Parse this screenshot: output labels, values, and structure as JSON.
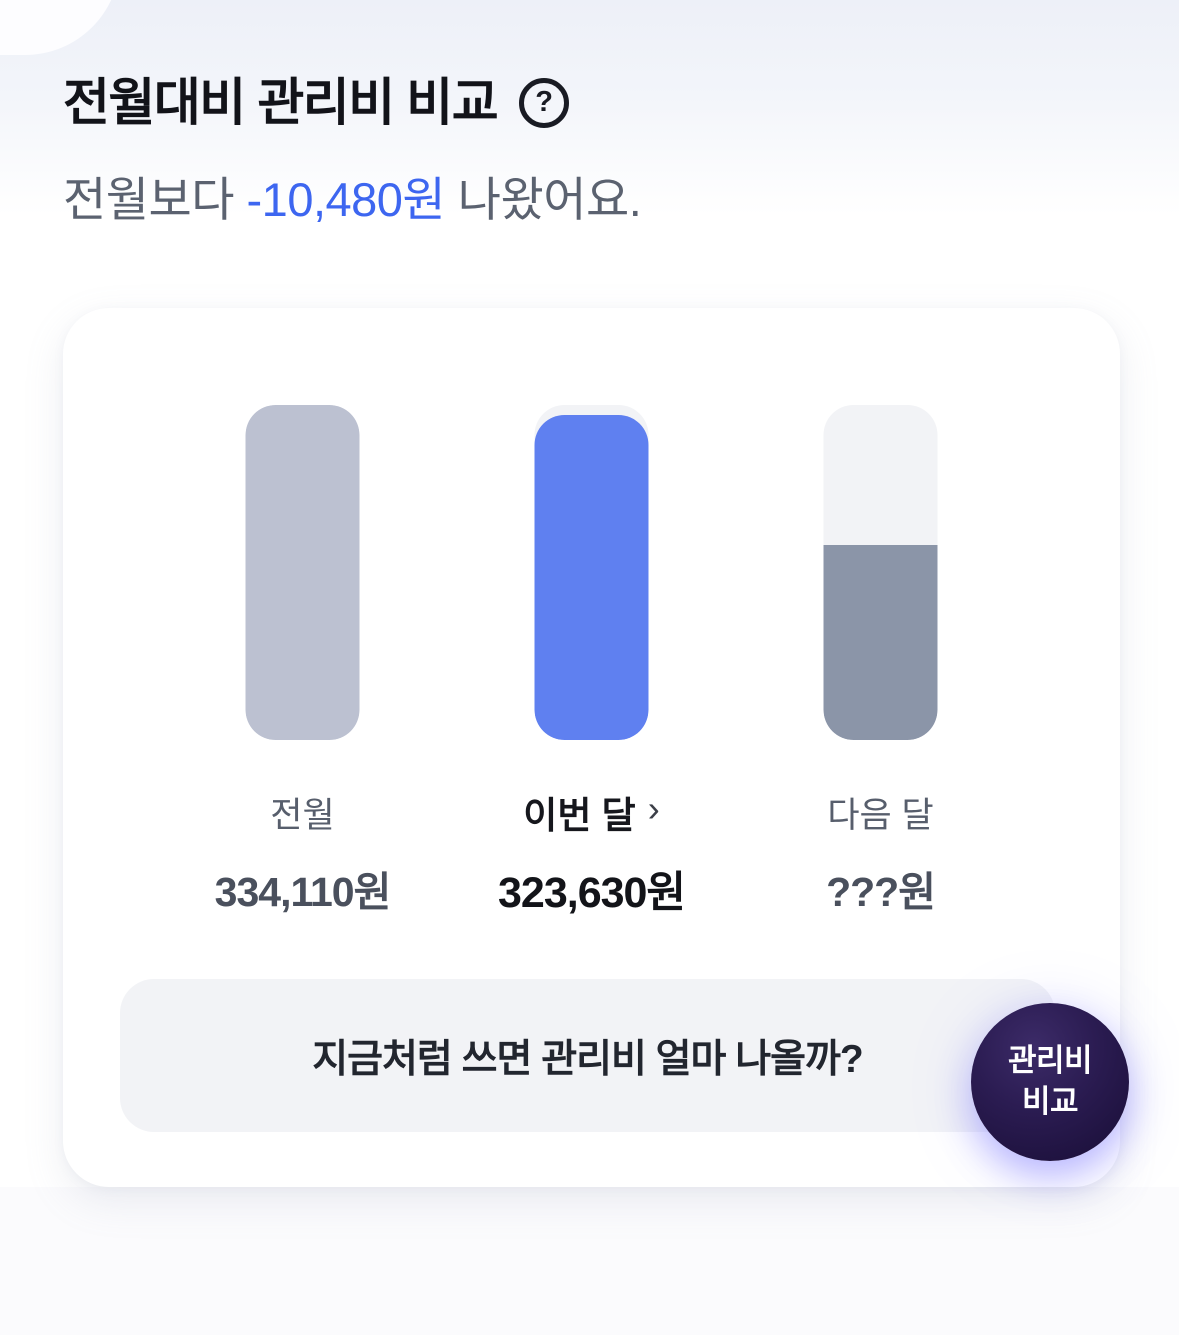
{
  "icons": {
    "help": "?",
    "chevron_right": "›"
  },
  "colors": {
    "accent_blue": "#3D66F0",
    "bar_prev": "#BCC1D1",
    "bar_current": "#5F80F0",
    "bar_next": "#8B95A8",
    "bar_track": "#F2F3F6",
    "badge_purple": "#2B1C52"
  },
  "header": {
    "title": "전월대비 관리비 비교",
    "subtitle_prefix": "전월보다 ",
    "subtitle_amount": "-10,480원",
    "subtitle_suffix": " 나왔어요."
  },
  "chart_data": {
    "type": "bar",
    "title": "전월대비 관리비 비교",
    "categories": [
      "전월",
      "이번 달",
      "다음 달"
    ],
    "values": [
      334110,
      323630,
      null
    ],
    "value_labels": [
      "334,110원",
      "323,630원",
      "???원"
    ],
    "unit": "원",
    "ylim": [
      0,
      334110
    ],
    "highlight_index": 1,
    "fill_ratios": [
      1,
      0.969,
      0.582
    ],
    "colors": [
      "#BCC1D1",
      "#5F80F0",
      "#8B95A8"
    ],
    "legend_position": "none",
    "grid": false
  },
  "banner": {
    "text": "지금처럼 쓰면 관리비 얼마 나올까?",
    "badge_line1": "관리비",
    "badge_line2": "비교"
  }
}
